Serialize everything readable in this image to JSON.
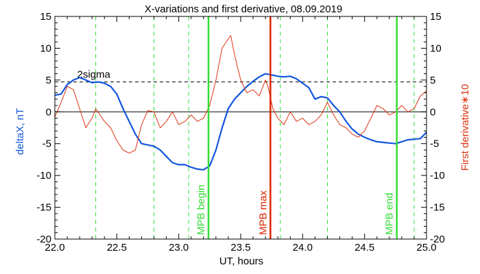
{
  "chart_data": {
    "type": "line",
    "title": "X-variations and first derivative, 08.09.2019",
    "xlabel": "UT, hours",
    "ylabel_left": "deltaX, nT",
    "ylabel_right": "First derivative∗10",
    "xlim": [
      22.0,
      25.0
    ],
    "ylim": [
      -20,
      15
    ],
    "x_ticks": [
      "22.0",
      "22.5",
      "23.0",
      "23.5",
      "24.0",
      "24.5",
      "25.0"
    ],
    "y_ticks": [
      "15",
      "10",
      "5",
      "0",
      "-5",
      "-10",
      "-15",
      "-20"
    ],
    "grid": false,
    "threshold": {
      "label": "2sigma",
      "value": 4.7
    },
    "zero_line": 0,
    "dashed_markers_x": [
      22.33,
      22.8,
      23.08,
      23.82,
      24.2,
      24.9
    ],
    "events": [
      {
        "label": "MPB begin",
        "x": 23.24,
        "color": "#33dd33"
      },
      {
        "label": "MPB max",
        "x": 23.74,
        "color": "#dd2200"
      },
      {
        "label": "MPB end",
        "x": 24.76,
        "color": "#33dd33"
      }
    ],
    "series": [
      {
        "axis": "left",
        "color": "#1155dd",
        "x": [
          22.0,
          22.05,
          22.1,
          22.15,
          22.2,
          22.25,
          22.3,
          22.35,
          22.4,
          22.45,
          22.5,
          22.55,
          22.6,
          22.65,
          22.7,
          22.75,
          22.8,
          22.85,
          22.9,
          22.95,
          23.0,
          23.05,
          23.1,
          23.15,
          23.2,
          23.25,
          23.3,
          23.35,
          23.4,
          23.45,
          23.5,
          23.55,
          23.6,
          23.65,
          23.7,
          23.75,
          23.8,
          23.85,
          23.9,
          23.95,
          24.0,
          24.05,
          24.1,
          24.15,
          24.2,
          24.25,
          24.3,
          24.35,
          24.4,
          24.45,
          24.5,
          24.55,
          24.6,
          24.65,
          24.7,
          24.75,
          24.8,
          24.85,
          24.9,
          24.95,
          25.0
        ],
        "y": [
          2.6,
          2.8,
          4.3,
          5.0,
          5.4,
          5.0,
          4.6,
          4.7,
          4.5,
          4.0,
          2.8,
          0.5,
          -1.5,
          -3.5,
          -5.0,
          -5.2,
          -5.4,
          -6.0,
          -7.0,
          -8.0,
          -8.3,
          -8.3,
          -8.7,
          -9.0,
          -9.1,
          -8.5,
          -6.0,
          -2.5,
          0.5,
          2.0,
          3.0,
          4.0,
          4.8,
          5.5,
          6.0,
          5.8,
          5.6,
          5.5,
          5.6,
          5.2,
          4.5,
          3.8,
          2.0,
          2.4,
          2.2,
          1.0,
          0.0,
          -1.5,
          -2.7,
          -3.5,
          -4.0,
          -4.4,
          -4.7,
          -4.8,
          -4.9,
          -5.0,
          -4.7,
          -4.4,
          -4.3,
          -4.2,
          -3.2
        ]
      },
      {
        "axis": "right",
        "color": "#dd3311",
        "x": [
          22.0,
          22.05,
          22.1,
          22.15,
          22.2,
          22.25,
          22.3,
          22.33,
          22.4,
          22.45,
          22.5,
          22.55,
          22.6,
          22.65,
          22.7,
          22.75,
          22.8,
          22.85,
          22.9,
          22.95,
          23.0,
          23.05,
          23.1,
          23.15,
          23.2,
          23.25,
          23.3,
          23.35,
          23.4,
          23.42,
          23.45,
          23.5,
          23.55,
          23.6,
          23.65,
          23.7,
          23.72,
          23.76,
          23.8,
          23.85,
          23.9,
          23.95,
          24.0,
          24.05,
          24.1,
          24.15,
          24.2,
          24.25,
          24.3,
          24.35,
          24.4,
          24.45,
          24.5,
          24.55,
          24.6,
          24.65,
          24.7,
          24.75,
          24.8,
          24.85,
          24.9,
          24.95,
          25.0
        ],
        "y": [
          -0.8,
          1.5,
          4.0,
          3.5,
          0.5,
          -2.5,
          -1.0,
          0.5,
          -1.5,
          -2.5,
          -4.5,
          -6.0,
          -6.5,
          -6.0,
          -2.0,
          0.2,
          0.0,
          -2.5,
          -1.5,
          0.0,
          -2.0,
          -1.5,
          -0.5,
          -1.5,
          -1.0,
          1.0,
          5.0,
          10.0,
          11.5,
          12.0,
          9.0,
          5.0,
          3.0,
          3.5,
          2.5,
          5.0,
          4.0,
          0.5,
          -1.0,
          -2.0,
          0.0,
          -1.5,
          -1.0,
          -2.0,
          -1.5,
          -0.5,
          1.5,
          -0.5,
          -2.0,
          -2.5,
          -3.5,
          -4.0,
          -3.0,
          -1.0,
          1.0,
          0.5,
          -0.5,
          0.0,
          1.0,
          0.0,
          0.5,
          2.5,
          3.3
        ]
      }
    ]
  }
}
